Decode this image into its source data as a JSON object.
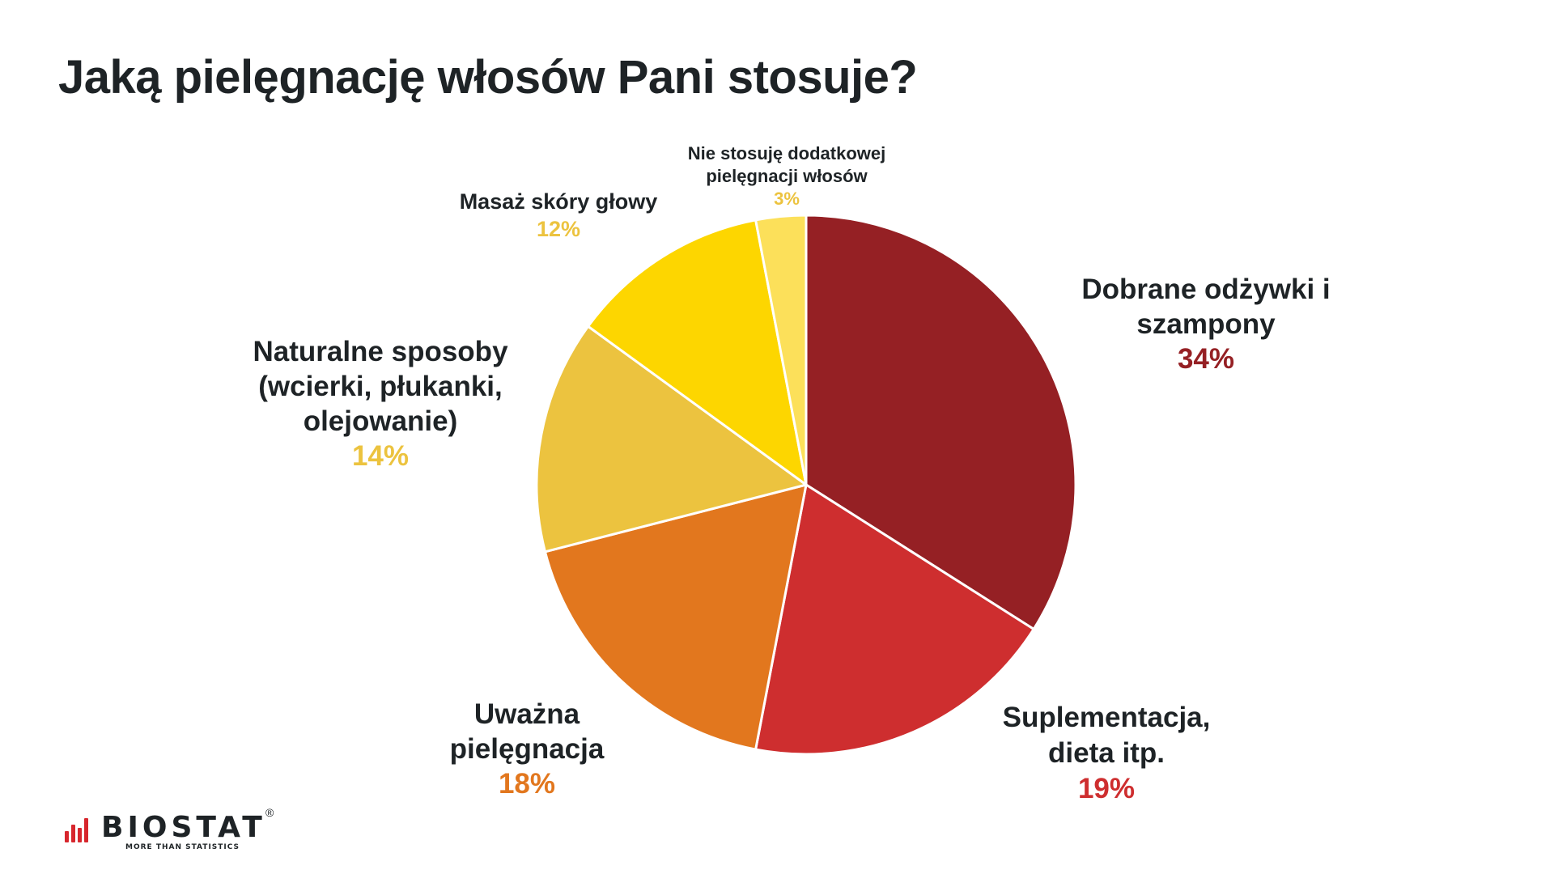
{
  "title": "Jaką pielęgnację włosów Pani stosuje?",
  "chart_data": {
    "type": "pie",
    "title": "Jaką pielęgnację włosów Pani stosuje?",
    "start_angle_deg": 0,
    "direction": "clockwise",
    "center": [
      996,
      599
    ],
    "radius": 333,
    "slice_border_color": "#ffffff",
    "categories": [
      "Dobrane odżywki i szampony",
      "Suplementacja, dieta itp.",
      "Uważna pielęgnacja",
      "Naturalne sposoby (wcierki, płukanki, olejowanie)",
      "Masaż skóry głowy",
      "Nie stosuję dodatkowej pielęgnacji włosów"
    ],
    "values": [
      34,
      19,
      18,
      14,
      12,
      3
    ],
    "unit": "%",
    "colors": [
      "#952024",
      "#ce2e2f",
      "#e2771e",
      "#ecc33f",
      "#fdd600",
      "#fce05a"
    ],
    "legend": "none (data labels outside slices)"
  },
  "labels": {
    "dobrane": {
      "lines": [
        "Dobrane odżywki i",
        "szampony"
      ],
      "pct": "34%",
      "pct_color": "#952024"
    },
    "suple": {
      "lines": [
        "Suplementacja,",
        "dieta itp."
      ],
      "pct": "19%",
      "pct_color": "#ce2e2f"
    },
    "uwazna": {
      "lines": [
        "Uważna",
        "pielęgnacja"
      ],
      "pct": "18%",
      "pct_color": "#e2771e"
    },
    "natur": {
      "lines": [
        "Naturalne sposoby",
        "(wcierki, płukanki,",
        "olejowanie)"
      ],
      "pct": "14%",
      "pct_color": "#ecc33f"
    },
    "masaz": {
      "lines": [
        "Masaż skóry głowy"
      ],
      "pct": "12%",
      "pct_color": "#ecc33f"
    },
    "none": {
      "lines": [
        "Nie stosuję dodatkowej",
        "pielęgnacji włosów"
      ],
      "pct": "3%",
      "pct_color": "#ecc33f"
    }
  },
  "logo": {
    "brand": "BIOSTAT",
    "registered": "®",
    "tagline": "MORE THAN STATISTICS",
    "accent_color": "#d7262d"
  }
}
